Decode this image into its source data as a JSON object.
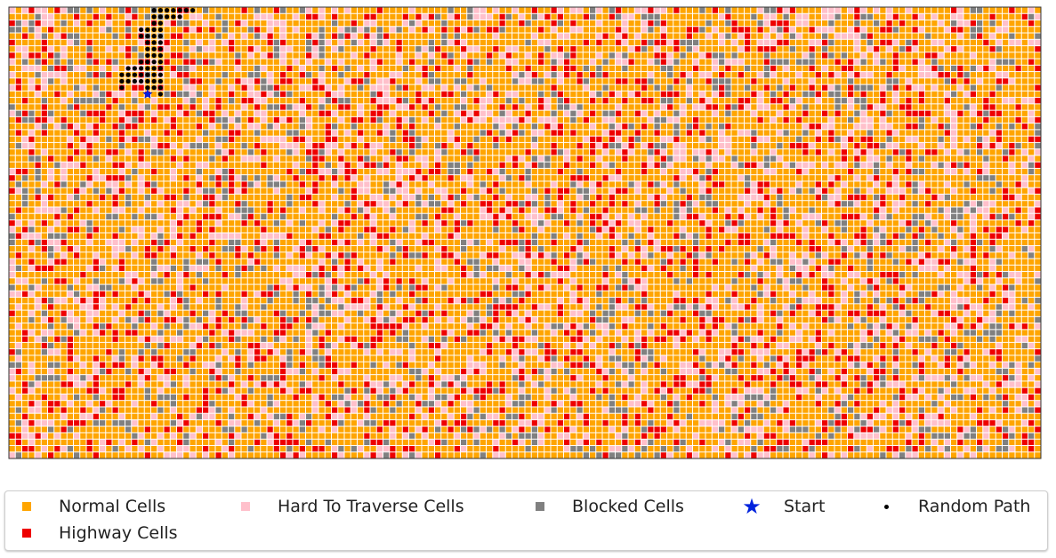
{
  "colors": {
    "normal": "#ffa500",
    "hard": "#ffc0cb",
    "blocked": "#808080",
    "highway": "#ee0000",
    "start": "#0022dd",
    "path": "#000000",
    "cell_border": "#ffffff",
    "frame": "#333333"
  },
  "legend": {
    "items": [
      {
        "label": "Normal Cells",
        "marker": "square",
        "color_key": "normal"
      },
      {
        "label": "Hard To Traverse Cells",
        "marker": "square",
        "color_key": "hard"
      },
      {
        "label": "Blocked Cells",
        "marker": "square",
        "color_key": "blocked"
      },
      {
        "label": "Start",
        "marker": "star",
        "color_key": "start"
      },
      {
        "label": "Random Path",
        "marker": "dot",
        "color_key": "path"
      },
      {
        "label": "Highway Cells",
        "marker": "square",
        "color_key": "highway"
      }
    ]
  },
  "chart_data": {
    "type": "heatmap",
    "title": "",
    "xlabel": "",
    "ylabel": "",
    "axes_visible": false,
    "grid_size": {
      "cols": 160,
      "rows": 70
    },
    "cell_type_shares": {
      "normal": 0.55,
      "hard": 0.18,
      "blocked": 0.12,
      "highway": 0.15
    },
    "start": {
      "col": 21,
      "row": 13
    },
    "random_path": [
      [
        23,
        13
      ],
      [
        23,
        12
      ],
      [
        23,
        11
      ],
      [
        23,
        10
      ],
      [
        23,
        9
      ],
      [
        23,
        8
      ],
      [
        23,
        7
      ],
      [
        23,
        6
      ],
      [
        23,
        5
      ],
      [
        23,
        4
      ],
      [
        23,
        3
      ],
      [
        23,
        2
      ],
      [
        23,
        1
      ],
      [
        23,
        0
      ],
      [
        22,
        12
      ],
      [
        22,
        11
      ],
      [
        22,
        10
      ],
      [
        22,
        9
      ],
      [
        22,
        8
      ],
      [
        22,
        7
      ],
      [
        22,
        6
      ],
      [
        22,
        5
      ],
      [
        22,
        4
      ],
      [
        22,
        3
      ],
      [
        22,
        2
      ],
      [
        22,
        1
      ],
      [
        22,
        0
      ],
      [
        21,
        12
      ],
      [
        21,
        11
      ],
      [
        21,
        10
      ],
      [
        21,
        9
      ],
      [
        21,
        8
      ],
      [
        21,
        7
      ],
      [
        21,
        6
      ],
      [
        21,
        5
      ],
      [
        21,
        4
      ],
      [
        21,
        3
      ],
      [
        20,
        11
      ],
      [
        20,
        10
      ],
      [
        20,
        9
      ],
      [
        20,
        8
      ],
      [
        20,
        4
      ],
      [
        20,
        3
      ],
      [
        19,
        11
      ],
      [
        19,
        10
      ],
      [
        19,
        9
      ],
      [
        18,
        11
      ],
      [
        18,
        10
      ],
      [
        18,
        9
      ],
      [
        17,
        12
      ],
      [
        17,
        11
      ],
      [
        17,
        10
      ],
      [
        24,
        1
      ],
      [
        24,
        0
      ],
      [
        25,
        1
      ],
      [
        25,
        0
      ],
      [
        26,
        1
      ],
      [
        26,
        0
      ],
      [
        27,
        0
      ],
      [
        28,
        0
      ]
    ]
  }
}
